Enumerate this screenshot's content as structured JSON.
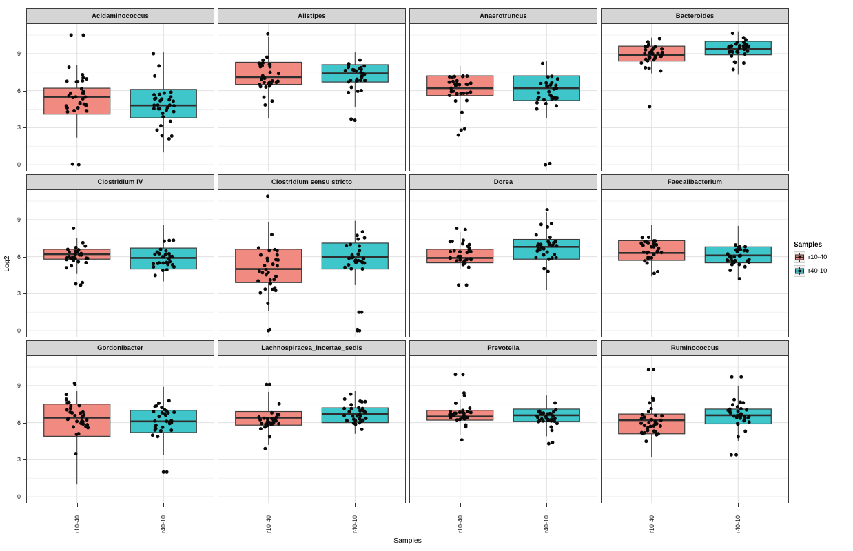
{
  "figure": {
    "legend": {
      "title": "Samples",
      "entries": [
        {
          "label": "r10-40",
          "color": "#f18a80"
        },
        {
          "label": "r40-10",
          "color": "#3ec6ca"
        }
      ]
    }
  },
  "chart_data": {
    "type": "boxplot",
    "description": "Faceted boxplots with jittered points of Log2 abundance per bacterial genus, comparing two sample groups",
    "xlabel": "Samples",
    "ylabel": "Log2",
    "categories": [
      "r10-40",
      "r40-10"
    ],
    "yticks": [
      0,
      3,
      6,
      9
    ],
    "ylim": [
      -0.55,
      11.45
    ],
    "grid": true,
    "legend_position": "right",
    "style": {
      "series_colors": {
        "r10-40": "#f18a80",
        "r40-10": "#3ec6ca"
      },
      "strip_bg": "#d5d5d5",
      "panel_border": "#3c3c3c",
      "major_grid": "#e0e0e0",
      "minor_grid": "#f1f1f1",
      "point_color": "#0a0a0a"
    },
    "facets": [
      {
        "title": "Acidaminococcus",
        "groups": [
          {
            "name": "r10-40",
            "low": 2.2,
            "q1": 4.1,
            "median": 5.5,
            "q3": 6.2,
            "high": 8.1,
            "outliers": [
              10.5,
              10.5,
              0,
              0.05
            ],
            "n": 30
          },
          {
            "name": "r40-10",
            "low": 1.0,
            "q1": 3.8,
            "median": 4.8,
            "q3": 6.1,
            "high": 9.1,
            "outliers": [],
            "n": 32
          }
        ]
      },
      {
        "title": "Alistipes",
        "groups": [
          {
            "name": "r10-40",
            "low": 3.8,
            "q1": 6.5,
            "median": 7.1,
            "q3": 8.3,
            "high": 10.4,
            "outliers": [
              10.6
            ],
            "n": 32
          },
          {
            "name": "r40-10",
            "low": 4.7,
            "q1": 6.7,
            "median": 7.4,
            "q3": 8.1,
            "high": 9.1,
            "outliers": [
              3.6,
              3.7
            ],
            "n": 30
          }
        ]
      },
      {
        "title": "Anaerotruncus",
        "groups": [
          {
            "name": "r10-40",
            "low": 3.5,
            "q1": 5.6,
            "median": 6.2,
            "q3": 7.2,
            "high": 8.0,
            "outliers": [
              2.9,
              2.8,
              2.4
            ],
            "n": 29
          },
          {
            "name": "r40-10",
            "low": 3.8,
            "q1": 5.2,
            "median": 6.2,
            "q3": 7.2,
            "high": 8.4,
            "outliers": [
              0,
              0.1
            ],
            "n": 30
          }
        ]
      },
      {
        "title": "Bacteroides",
        "groups": [
          {
            "name": "r10-40",
            "low": 7.4,
            "q1": 8.4,
            "median": 8.9,
            "q3": 9.6,
            "high": 10.3,
            "outliers": [
              4.7
            ],
            "n": 32
          },
          {
            "name": "r40-10",
            "low": 7.3,
            "q1": 8.9,
            "median": 9.4,
            "q3": 10.0,
            "high": 10.8,
            "outliers": [],
            "n": 32
          }
        ]
      },
      {
        "title": "Clostridium IV",
        "groups": [
          {
            "name": "r10-40",
            "low": 4.6,
            "q1": 5.8,
            "median": 6.2,
            "q3": 6.6,
            "high": 7.5,
            "outliers": [
              8.3,
              3.9,
              3.8,
              3.7
            ],
            "n": 28
          },
          {
            "name": "r40-10",
            "low": 4.0,
            "q1": 5.0,
            "median": 5.9,
            "q3": 6.7,
            "high": 8.6,
            "outliers": [],
            "n": 30
          }
        ]
      },
      {
        "title": "Clostridium sensu stricto",
        "groups": [
          {
            "name": "r10-40",
            "low": 1.6,
            "q1": 3.9,
            "median": 5.0,
            "q3": 6.6,
            "high": 8.8,
            "outliers": [
              10.9,
              0,
              0.1
            ],
            "n": 30
          },
          {
            "name": "r40-10",
            "low": 3.7,
            "q1": 5.0,
            "median": 6.0,
            "q3": 7.1,
            "high": 8.9,
            "outliers": [
              1.5,
              1.5,
              0,
              0,
              0.1
            ],
            "n": 28
          }
        ]
      },
      {
        "title": "Dorea",
        "groups": [
          {
            "name": "r10-40",
            "low": 5.0,
            "q1": 5.5,
            "median": 5.9,
            "q3": 6.6,
            "high": 8.0,
            "outliers": [
              8.3,
              8.2,
              3.7,
              3.7
            ],
            "n": 28
          },
          {
            "name": "r40-10",
            "low": 3.3,
            "q1": 5.8,
            "median": 6.8,
            "q3": 7.4,
            "high": 9.6,
            "outliers": [
              9.8
            ],
            "n": 30
          }
        ]
      },
      {
        "title": "Faecalibacterium",
        "groups": [
          {
            "name": "r10-40",
            "low": 4.4,
            "q1": 5.7,
            "median": 6.3,
            "q3": 7.3,
            "high": 8.6,
            "outliers": [],
            "n": 30
          },
          {
            "name": "r40-10",
            "low": 4.1,
            "q1": 5.5,
            "median": 6.1,
            "q3": 6.8,
            "high": 8.5,
            "outliers": [],
            "n": 32
          }
        ]
      },
      {
        "title": "Gordonibacter",
        "groups": [
          {
            "name": "r10-40",
            "low": 1.0,
            "q1": 4.9,
            "median": 6.4,
            "q3": 7.5,
            "high": 8.6,
            "outliers": [
              9.2,
              9.1
            ],
            "n": 32
          },
          {
            "name": "r40-10",
            "low": 3.4,
            "q1": 5.2,
            "median": 6.1,
            "q3": 7.0,
            "high": 8.9,
            "outliers": [
              2.0,
              2.0
            ],
            "n": 30
          }
        ]
      },
      {
        "title": "Lachnospiracea_incertae_sedis",
        "groups": [
          {
            "name": "r10-40",
            "low": 4.2,
            "q1": 5.8,
            "median": 6.4,
            "q3": 6.9,
            "high": 8.5,
            "outliers": [
              9.1,
              9.1,
              3.9
            ],
            "n": 32
          },
          {
            "name": "r40-10",
            "low": 5.1,
            "q1": 6.0,
            "median": 6.7,
            "q3": 7.2,
            "high": 8.6,
            "outliers": [],
            "n": 32
          }
        ]
      },
      {
        "title": "Prevotella",
        "groups": [
          {
            "name": "r10-40",
            "low": 5.0,
            "q1": 6.2,
            "median": 6.5,
            "q3": 7.0,
            "high": 7.9,
            "outliers": [
              9.9,
              9.9,
              8.4,
              8.2,
              4.6
            ],
            "n": 28
          },
          {
            "name": "r40-10",
            "low": 4.9,
            "q1": 6.1,
            "median": 6.6,
            "q3": 7.1,
            "high": 8.2,
            "outliers": [
              4.4,
              4.3
            ],
            "n": 30
          }
        ]
      },
      {
        "title": "Ruminococcus",
        "groups": [
          {
            "name": "r10-40",
            "low": 3.2,
            "q1": 5.1,
            "median": 6.2,
            "q3": 6.7,
            "high": 8.2,
            "outliers": [
              10.3,
              10.3
            ],
            "n": 32
          },
          {
            "name": "r40-10",
            "low": 4.5,
            "q1": 5.9,
            "median": 6.6,
            "q3": 7.1,
            "high": 9.0,
            "outliers": [
              9.7,
              9.7,
              3.4,
              3.4
            ],
            "n": 30
          }
        ]
      }
    ]
  }
}
